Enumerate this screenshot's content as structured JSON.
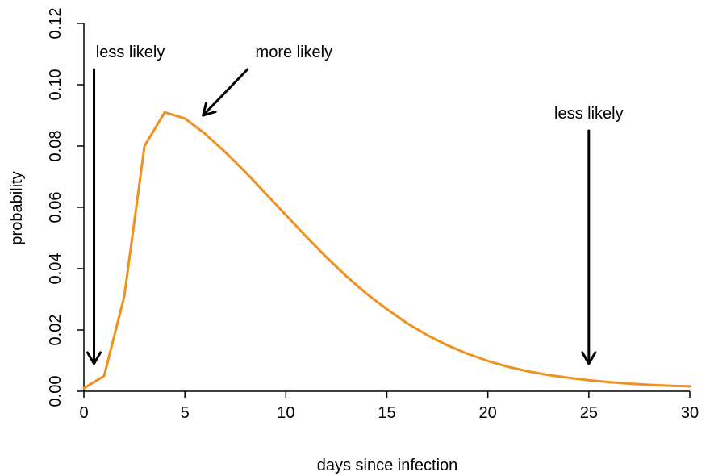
{
  "chart_data": {
    "type": "line",
    "title": "",
    "xlabel": "days since infection",
    "ylabel": "probability",
    "xlim": [
      0,
      30
    ],
    "ylim": [
      0,
      0.12
    ],
    "xticks": [
      0,
      5,
      10,
      15,
      20,
      25,
      30
    ],
    "xtick_labels": [
      "0",
      "5",
      "10",
      "15",
      "20",
      "25",
      "30"
    ],
    "yticks": [
      0,
      0.02,
      0.04,
      0.06,
      0.08,
      0.1,
      0.12
    ],
    "ytick_labels": [
      "0.00",
      "0.02",
      "0.04",
      "0.06",
      "0.08",
      "0.10",
      "0.12"
    ],
    "grid": false,
    "legend": "none",
    "series": [
      {
        "color": "#f0901e",
        "x": [
          0,
          1,
          2,
          3,
          4,
          5,
          6,
          7,
          8,
          9,
          10,
          11,
          12,
          13,
          14,
          15,
          16,
          17,
          18,
          19,
          20,
          21,
          22,
          23,
          24,
          25,
          26,
          27,
          28,
          29,
          30
        ],
        "y": [
          0.001,
          0.005,
          0.031,
          0.08,
          0.091,
          0.089,
          0.084,
          0.078,
          0.0715,
          0.0645,
          0.0575,
          0.0505,
          0.0438,
          0.0375,
          0.0318,
          0.0268,
          0.0222,
          0.0183,
          0.015,
          0.0122,
          0.0099,
          0.008,
          0.0065,
          0.0053,
          0.0044,
          0.0036,
          0.003,
          0.0025,
          0.0021,
          0.0018,
          0.0016
        ]
      }
    ],
    "annotations": [
      {
        "text": "less likely",
        "text_x": 2.3,
        "text_y": 0.109,
        "arrow": {
          "from": [
            0.5,
            0.105
          ],
          "to": [
            0.5,
            0.009
          ]
        }
      },
      {
        "text": "more likely",
        "text_x": 10.4,
        "text_y": 0.109,
        "arrow": {
          "from": [
            8.1,
            0.105
          ],
          "to": [
            5.9,
            0.09
          ]
        }
      },
      {
        "text": "less likely",
        "text_x": 25.0,
        "text_y": 0.089,
        "arrow": {
          "from": [
            25.0,
            0.085
          ],
          "to": [
            25.0,
            0.009
          ]
        }
      }
    ]
  }
}
